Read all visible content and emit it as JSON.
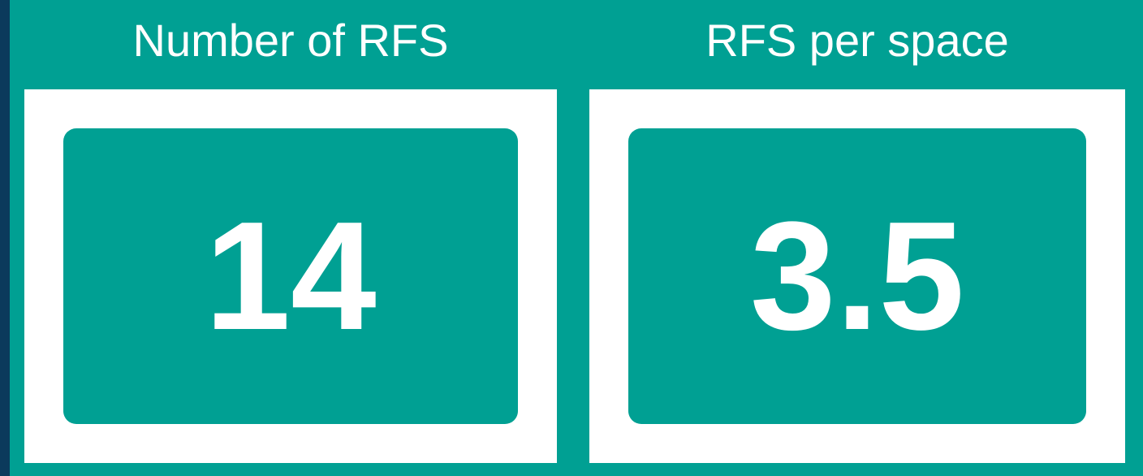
{
  "cards": [
    {
      "title": "Number of RFS",
      "value": 14
    },
    {
      "title": "RFS per space",
      "value": 3.5
    }
  ]
}
